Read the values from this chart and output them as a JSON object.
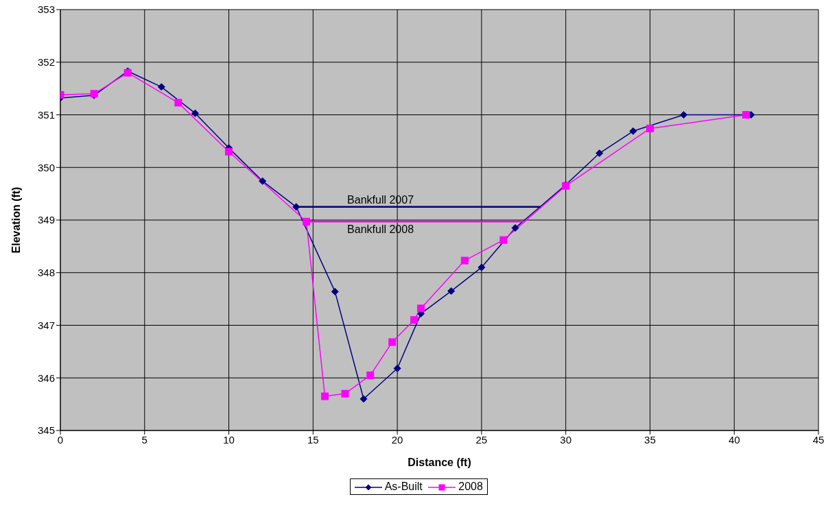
{
  "chart_data": {
    "type": "line",
    "xlabel": "Distance (ft)",
    "ylabel": "Elevation (ft)",
    "xlim": [
      0,
      45
    ],
    "xticks": [
      0,
      5,
      10,
      15,
      20,
      25,
      30,
      35,
      40,
      45
    ],
    "ylim": [
      345,
      353
    ],
    "yticks": [
      345,
      346,
      347,
      348,
      349,
      350,
      351,
      352,
      353
    ],
    "grid": true,
    "legend": "bottom",
    "series": [
      {
        "name": "As-Built",
        "color": "#000080",
        "marker": "diamond",
        "x": [
          0,
          2,
          4,
          6,
          8,
          10,
          12,
          14,
          16.3,
          18,
          20,
          21.4,
          23.2,
          25,
          27,
          30,
          32,
          34,
          37,
          41
        ],
        "values": [
          351.32,
          351.37,
          351.83,
          351.53,
          351.03,
          350.37,
          349.74,
          349.25,
          347.64,
          345.6,
          346.18,
          347.22,
          347.65,
          348.1,
          348.85,
          349.67,
          350.27,
          350.69,
          351.0,
          351.0
        ]
      },
      {
        "name": "2008",
        "color": "#ff00ff",
        "marker": "square",
        "x": [
          0,
          2,
          4,
          7,
          10,
          14.6,
          15.7,
          16.9,
          18.4,
          19.7,
          21,
          21.4,
          24,
          26.3,
          30,
          35,
          40.7
        ],
        "values": [
          351.38,
          351.4,
          351.8,
          351.23,
          350.3,
          348.97,
          345.65,
          345.7,
          346.05,
          346.68,
          347.1,
          347.32,
          348.23,
          348.62,
          349.65,
          350.74,
          351.0
        ]
      },
      {
        "color": "#000080",
        "marker": "none",
        "x": [
          14,
          28.5
        ],
        "values": [
          349.25,
          349.25
        ]
      },
      {
        "color": "#ff00ff",
        "marker": "none",
        "x": [
          14.6,
          27.5
        ],
        "values": [
          348.97,
          348.97
        ]
      }
    ],
    "annotations": [
      {
        "text": "Bankfull 2007",
        "x": 19,
        "y": 349.25
      },
      {
        "text": "Bankfull 2008",
        "x": 19,
        "y": 348.97
      }
    ]
  }
}
